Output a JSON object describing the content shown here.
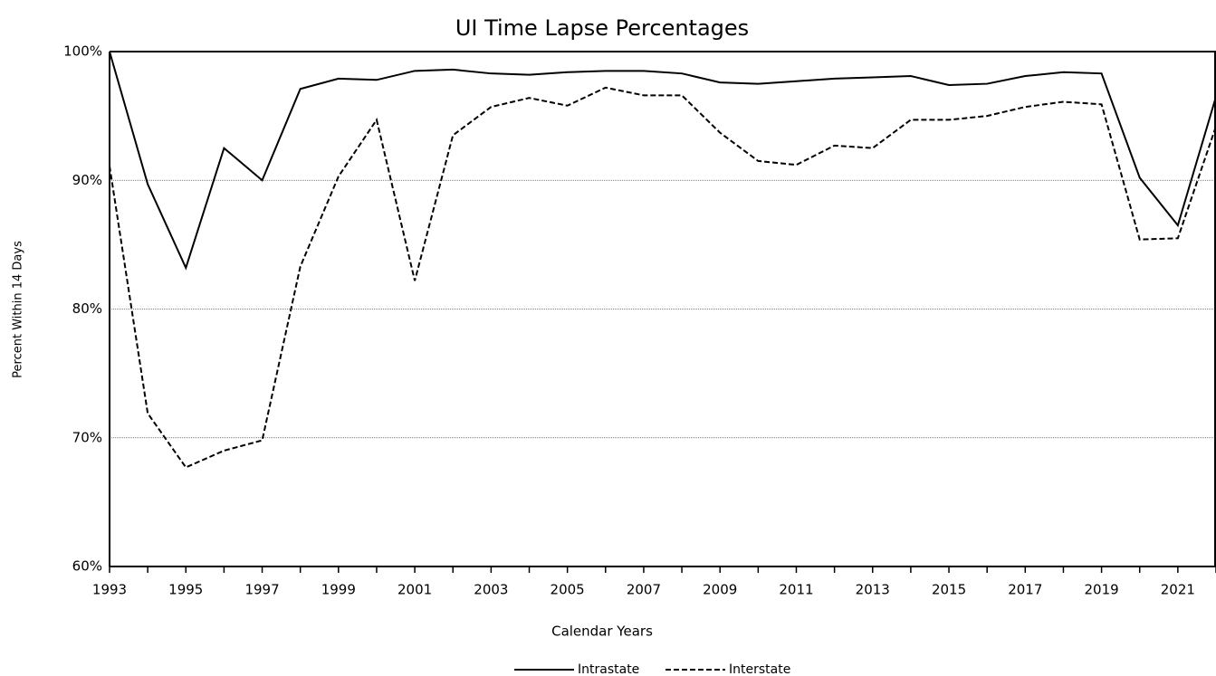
{
  "chart_data": {
    "type": "line",
    "title": "UI Time Lapse Percentages",
    "x_label": "Calendar Years",
    "y_label": "Percent Within 14 Days",
    "x": [
      1993,
      1994,
      1995,
      1996,
      1997,
      1998,
      1999,
      2000,
      2001,
      2002,
      2003,
      2004,
      2005,
      2006,
      2007,
      2008,
      2009,
      2010,
      2011,
      2012,
      2013,
      2014,
      2015,
      2016,
      2017,
      2018,
      2019,
      2020,
      2021,
      2022
    ],
    "series": [
      {
        "name": "Intrastate",
        "color": "#000000",
        "line_style": "solid",
        "values": [
          100,
          89.7,
          83.2,
          92.5,
          90.0,
          97.1,
          97.9,
          97.8,
          98.5,
          98.6,
          98.3,
          98.2,
          98.4,
          98.5,
          98.5,
          98.3,
          97.6,
          97.5,
          97.7,
          97.9,
          98.0,
          98.1,
          97.4,
          97.5,
          98.1,
          98.4,
          98.3,
          90.2,
          86.5,
          96.5
        ]
      },
      {
        "name": "Interstate",
        "color": "#000000",
        "line_style": "dashed",
        "values": [
          91.1,
          71.9,
          67.7,
          69.0,
          69.8,
          83.3,
          90.3,
          94.7,
          82.2,
          93.5,
          95.7,
          96.4,
          95.8,
          97.2,
          96.6,
          96.6,
          93.7,
          91.5,
          91.2,
          92.7,
          92.5,
          94.7,
          94.7,
          95.0,
          95.7,
          96.1,
          95.9,
          85.4,
          85.5,
          94.2
        ]
      }
    ],
    "xlim": [
      1993,
      2022
    ],
    "xticks": [
      1993,
      1995,
      1997,
      1999,
      2001,
      2003,
      2005,
      2007,
      2009,
      2011,
      2013,
      2015,
      2017,
      2019,
      2021
    ],
    "ylim": [
      60,
      100
    ],
    "yticks": [
      {
        "value": 60,
        "label": "60%"
      },
      {
        "value": 70,
        "label": "70%"
      },
      {
        "value": 80,
        "label": "80%"
      },
      {
        "value": 90,
        "label": "90%"
      },
      {
        "value": 100,
        "label": "100%"
      }
    ],
    "grid": true,
    "legend": "bottom"
  }
}
